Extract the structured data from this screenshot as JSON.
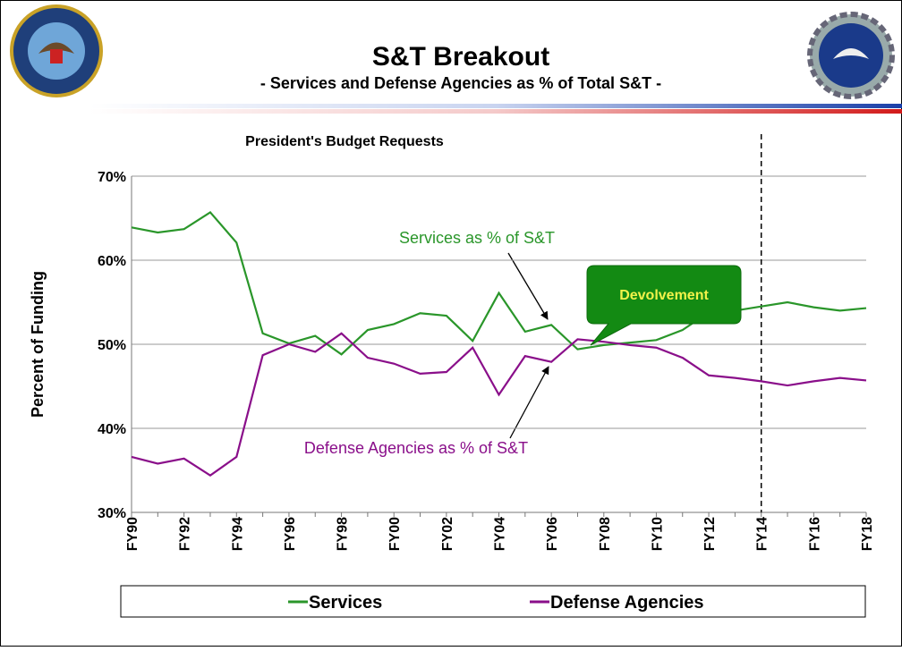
{
  "header": {
    "title": "S&T Breakout",
    "subtitle": "- Services and Defense Agencies  as % of Total S&T -"
  },
  "chart_data": {
    "type": "line",
    "title": "President's Budget Requests",
    "y_label": "Percent of Funding",
    "categories": [
      "FY90",
      null,
      "FY92",
      null,
      "FY94",
      null,
      "FY96",
      null,
      "FY98",
      null,
      "FY00",
      null,
      "FY02",
      null,
      "FY04",
      null,
      "FY06",
      null,
      "FY08",
      null,
      "FY10",
      null,
      "FY12",
      null,
      "FY14",
      null,
      "FY16",
      null,
      "FY18"
    ],
    "series": [
      {
        "name": "Services",
        "color": "#2a962a",
        "values": [
          63.9,
          63.3,
          63.7,
          65.7,
          62.1,
          51.3,
          50.1,
          51.0,
          48.8,
          51.7,
          52.4,
          53.7,
          53.4,
          50.4,
          56.1,
          51.5,
          52.3,
          49.4,
          49.9,
          50.2,
          50.5,
          51.7,
          53.8,
          54.0,
          54.5,
          55.0,
          54.4,
          54.0,
          54.3
        ]
      },
      {
        "name": "Defense Agencies",
        "color": "#8a0f8a",
        "values": [
          36.6,
          35.8,
          36.4,
          34.4,
          36.6,
          48.7,
          50.0,
          49.1,
          51.3,
          48.4,
          47.7,
          46.5,
          46.7,
          49.6,
          44.0,
          48.6,
          47.9,
          50.6,
          50.3,
          49.9,
          49.6,
          48.4,
          46.3,
          46.0,
          45.6,
          45.1,
          45.6,
          46.0,
          45.7
        ]
      }
    ],
    "ylim": [
      30,
      70
    ],
    "yticks": [
      {
        "value": 30,
        "label": "30%"
      },
      {
        "value": 40,
        "label": "40%"
      },
      {
        "value": 50,
        "label": "50%"
      },
      {
        "value": 60,
        "label": "60%"
      },
      {
        "value": 70,
        "label": "70%"
      }
    ],
    "grid": true,
    "legend": "bottom",
    "reference_line": "FY14",
    "annotations": [
      "Services as % of S&T",
      "Defense Agencies as % of S&T",
      "Devolvement"
    ]
  }
}
